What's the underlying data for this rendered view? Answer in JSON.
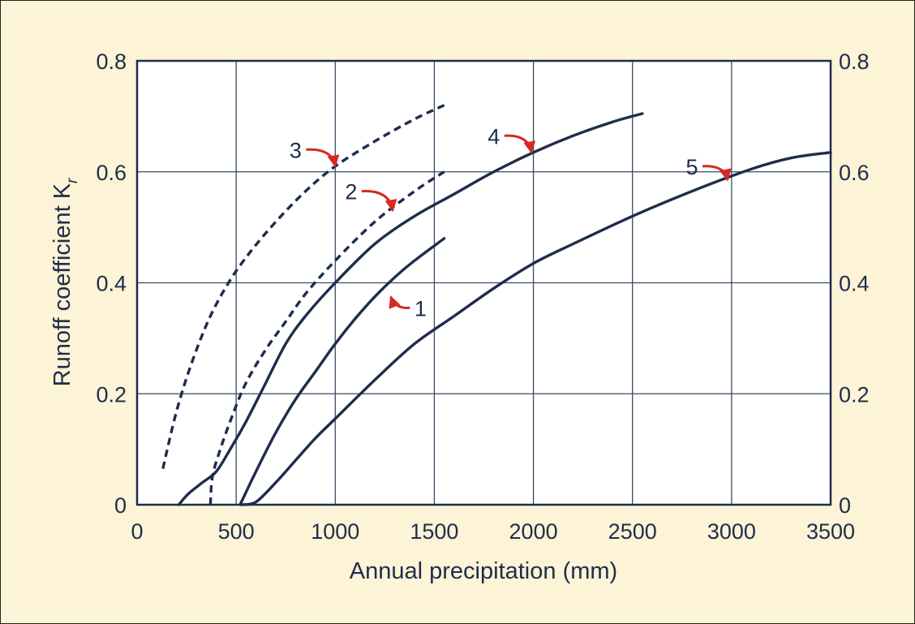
{
  "chart_data": {
    "type": "line",
    "xlabel": "Annual precipitation (mm)",
    "ylabel": "Runoff coefficient K",
    "ylabel_subscript": "r",
    "xlim": [
      0,
      3500
    ],
    "ylim": [
      0,
      0.8
    ],
    "x_ticks": [
      "0",
      "500",
      "1000",
      "1500",
      "2000",
      "2500",
      "3000",
      "3500"
    ],
    "y_ticks": [
      "0",
      "0.2",
      "0.4",
      "0.6",
      "0.8"
    ],
    "y_ticks_right": [
      "0",
      "0.2",
      "0.4",
      "0.6",
      "0.8"
    ],
    "grid": true,
    "colors": {
      "background": "#fdf3d7",
      "plot_bg": "#ffffff",
      "line": "#1e2d4a",
      "grid": "#3c4a66",
      "arrow": "#d42a1f"
    },
    "series": [
      {
        "name": "1",
        "style": "solid",
        "points": [
          [
            520,
            0
          ],
          [
            600,
            0.06
          ],
          [
            700,
            0.13
          ],
          [
            800,
            0.19
          ],
          [
            900,
            0.24
          ],
          [
            1000,
            0.29
          ],
          [
            1100,
            0.335
          ],
          [
            1200,
            0.375
          ],
          [
            1300,
            0.41
          ],
          [
            1400,
            0.44
          ],
          [
            1550,
            0.48
          ]
        ]
      },
      {
        "name": "2",
        "style": "dashed",
        "points": [
          [
            370,
            0
          ],
          [
            380,
            0.05
          ],
          [
            420,
            0.1
          ],
          [
            480,
            0.16
          ],
          [
            550,
            0.22
          ],
          [
            650,
            0.28
          ],
          [
            750,
            0.33
          ],
          [
            850,
            0.38
          ],
          [
            1000,
            0.44
          ],
          [
            1200,
            0.51
          ],
          [
            1400,
            0.565
          ],
          [
            1550,
            0.6
          ]
        ]
      },
      {
        "name": "3",
        "style": "dashed",
        "points": [
          [
            130,
            0.065
          ],
          [
            200,
            0.17
          ],
          [
            280,
            0.26
          ],
          [
            370,
            0.34
          ],
          [
            470,
            0.405
          ],
          [
            570,
            0.455
          ],
          [
            700,
            0.51
          ],
          [
            850,
            0.565
          ],
          [
            1000,
            0.61
          ],
          [
            1200,
            0.655
          ],
          [
            1400,
            0.695
          ],
          [
            1550,
            0.72
          ]
        ]
      },
      {
        "name": "4",
        "style": "solid",
        "points": [
          [
            210,
            0
          ],
          [
            260,
            0.02
          ],
          [
            330,
            0.04
          ],
          [
            400,
            0.06
          ],
          [
            470,
            0.1
          ],
          [
            550,
            0.15
          ],
          [
            650,
            0.22
          ],
          [
            750,
            0.29
          ],
          [
            850,
            0.34
          ],
          [
            1000,
            0.4
          ],
          [
            1200,
            0.47
          ],
          [
            1400,
            0.52
          ],
          [
            1600,
            0.56
          ],
          [
            1800,
            0.6
          ],
          [
            2000,
            0.635
          ],
          [
            2200,
            0.665
          ],
          [
            2400,
            0.69
          ],
          [
            2550,
            0.705
          ]
        ]
      },
      {
        "name": "5",
        "style": "solid",
        "points": [
          [
            530,
            0
          ],
          [
            600,
            0.005
          ],
          [
            700,
            0.04
          ],
          [
            800,
            0.08
          ],
          [
            900,
            0.12
          ],
          [
            1000,
            0.155
          ],
          [
            1200,
            0.225
          ],
          [
            1400,
            0.29
          ],
          [
            1600,
            0.34
          ],
          [
            1800,
            0.39
          ],
          [
            2000,
            0.435
          ],
          [
            2200,
            0.47
          ],
          [
            2500,
            0.52
          ],
          [
            2800,
            0.565
          ],
          [
            3100,
            0.605
          ],
          [
            3300,
            0.625
          ],
          [
            3500,
            0.635
          ]
        ]
      }
    ],
    "annotations": [
      {
        "text": "1",
        "series": "1",
        "label_at": [
          1430,
          0.355
        ],
        "arrow_to": [
          1280,
          0.375
        ]
      },
      {
        "text": "2",
        "series": "2",
        "label_at": [
          1080,
          0.565
        ],
        "arrow_to": [
          1290,
          0.53
        ]
      },
      {
        "text": "3",
        "series": "3",
        "label_at": [
          800,
          0.64
        ],
        "arrow_to": [
          1000,
          0.61
        ]
      },
      {
        "text": "4",
        "series": "4",
        "label_at": [
          1800,
          0.665
        ],
        "arrow_to": [
          1990,
          0.635
        ]
      },
      {
        "text": "5",
        "series": "5",
        "label_at": [
          2800,
          0.61
        ],
        "arrow_to": [
          2980,
          0.585
        ]
      }
    ]
  }
}
